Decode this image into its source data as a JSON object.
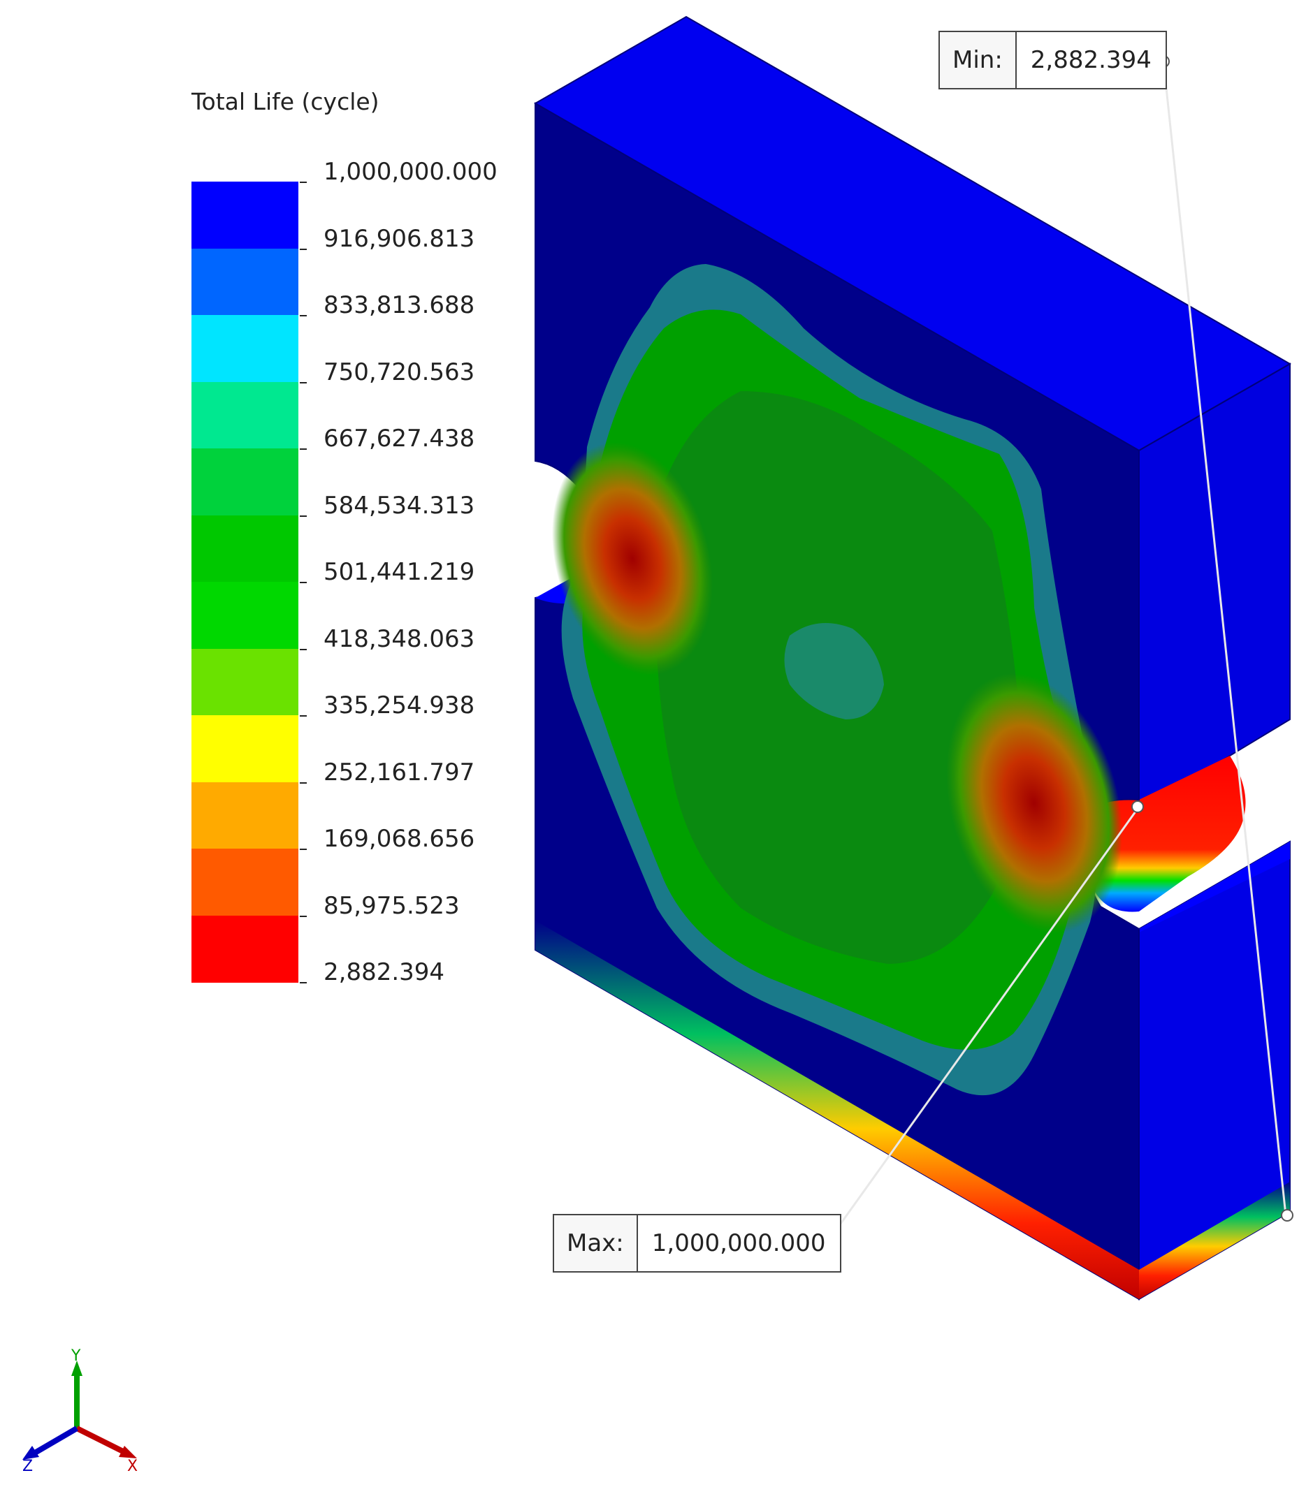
{
  "legend": {
    "title": "Total Life (cycle)",
    "bands": [
      {
        "color": "#0000ff"
      },
      {
        "color": "#0066ff"
      },
      {
        "color": "#00e5ff"
      },
      {
        "color": "#00e890"
      },
      {
        "color": "#00d23c"
      },
      {
        "color": "#00c800"
      },
      {
        "color": "#00d800"
      },
      {
        "color": "#6ae200"
      },
      {
        "color": "#ffff00"
      },
      {
        "color": "#ffaa00"
      },
      {
        "color": "#ff5a00"
      },
      {
        "color": "#ff0000"
      }
    ],
    "ticks": [
      "1,000,000.000",
      "916,906.813",
      "833,813.688",
      "750,720.563",
      "667,627.438",
      "584,534.313",
      "501,441.219",
      "418,348.063",
      "335,254.938",
      "252,161.797",
      "169,068.656",
      "85,975.523",
      "2,882.394"
    ]
  },
  "min_callout": {
    "label": "Min:",
    "value": "2,882.394"
  },
  "max_callout": {
    "label": "Max:",
    "value": "1,000,000.000"
  },
  "triad": {
    "x": "X",
    "y": "Y",
    "z": "Z"
  },
  "colors": {
    "part_front": "#00008a",
    "part_top": "#0000f0",
    "part_side": "#0000e0",
    "hot": "#c80000"
  }
}
